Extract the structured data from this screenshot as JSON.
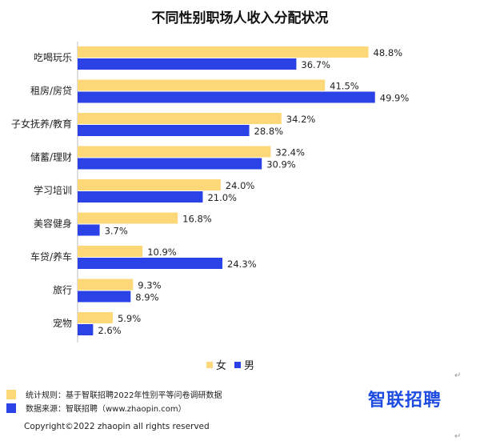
{
  "chart_data": {
    "type": "bar",
    "orientation": "horizontal",
    "title": "不同性别职场人收入分配状况",
    "categories": [
      "吃喝玩乐",
      "租房/房贷",
      "子女抚养/教育",
      "储蓄/理财",
      "学习培训",
      "美容健身",
      "车贷/养车",
      "旅行",
      "宠物"
    ],
    "series": [
      {
        "name": "女",
        "color": "#fcd878",
        "values": [
          48.8,
          41.5,
          34.2,
          32.4,
          24.0,
          16.8,
          10.9,
          9.3,
          5.9
        ],
        "labels": [
          "48.8%",
          "41.5%",
          "34.2%",
          "32.4%",
          "24.0%",
          "16.8%",
          "10.9%",
          "9.3%",
          "5.9%"
        ]
      },
      {
        "name": "男",
        "color": "#2b43e6",
        "values": [
          36.7,
          49.9,
          28.8,
          30.9,
          21.0,
          3.7,
          24.3,
          8.9,
          2.6
        ],
        "labels": [
          "36.7%",
          "49.9%",
          "28.8%",
          "30.9%",
          "21.0%",
          "3.7%",
          "24.3%",
          "8.9%",
          "2.6%"
        ]
      }
    ],
    "xlim": [
      0,
      50
    ],
    "grid": false,
    "legend_position": "bottom"
  },
  "legend": {
    "female": "女",
    "male": "男"
  },
  "notes": {
    "rule": "统计规则：基于智联招聘2022年性别平等问卷调研数据",
    "source": "数据来源：智联招聘（www.zhaopin.com）"
  },
  "logo": "智联招聘",
  "copyright": "Copyright©2022 zhaopin all rights reserved",
  "colors": {
    "female": "#fcd878",
    "male": "#2b43e6",
    "logo": "#1e4be0"
  }
}
